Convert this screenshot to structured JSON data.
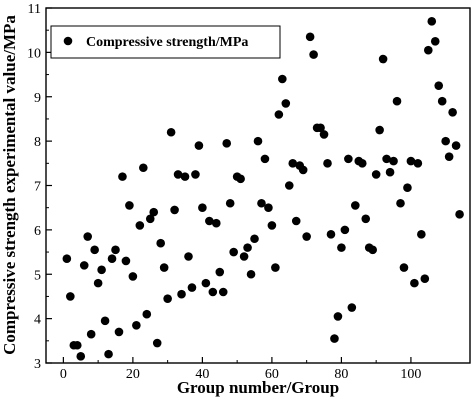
{
  "chart_data": {
    "type": "scatter",
    "xlabel": "Group number/Group",
    "ylabel": "Compressive strength experimental value/MPa",
    "xlim": [
      -5,
      117
    ],
    "ylim": [
      3,
      11
    ],
    "xticks": [
      "0",
      "20",
      "40",
      "60",
      "80",
      "100"
    ],
    "yticks": [
      "3",
      "4",
      "5",
      "6",
      "7",
      "8",
      "9",
      "10",
      "11"
    ],
    "legend_position": "top-left",
    "grid": false,
    "series": [
      {
        "name": "Compressive strength/MPa",
        "color": "#000000",
        "points": [
          [
            1,
            5.35
          ],
          [
            2,
            4.5
          ],
          [
            3,
            3.4
          ],
          [
            4,
            3.4
          ],
          [
            5,
            3.15
          ],
          [
            6,
            5.2
          ],
          [
            7,
            5.85
          ],
          [
            8,
            3.65
          ],
          [
            9,
            5.55
          ],
          [
            10,
            4.8
          ],
          [
            11,
            5.1
          ],
          [
            12,
            3.95
          ],
          [
            13,
            3.2
          ],
          [
            14,
            5.35
          ],
          [
            15,
            5.55
          ],
          [
            16,
            3.7
          ],
          [
            17,
            7.2
          ],
          [
            18,
            5.3
          ],
          [
            19,
            6.55
          ],
          [
            20,
            4.95
          ],
          [
            21,
            3.85
          ],
          [
            22,
            6.1
          ],
          [
            23,
            7.4
          ],
          [
            24,
            4.1
          ],
          [
            25,
            6.25
          ],
          [
            26,
            6.4
          ],
          [
            27,
            3.45
          ],
          [
            28,
            5.7
          ],
          [
            29,
            5.15
          ],
          [
            30,
            4.45
          ],
          [
            31,
            8.2
          ],
          [
            32,
            6.45
          ],
          [
            33,
            7.25
          ],
          [
            34,
            4.55
          ],
          [
            35,
            7.2
          ],
          [
            36,
            5.4
          ],
          [
            37,
            4.7
          ],
          [
            38,
            7.25
          ],
          [
            39,
            7.9
          ],
          [
            40,
            6.5
          ],
          [
            41,
            4.8
          ],
          [
            42,
            6.2
          ],
          [
            43,
            4.6
          ],
          [
            44,
            6.15
          ],
          [
            45,
            5.05
          ],
          [
            46,
            4.6
          ],
          [
            47,
            7.95
          ],
          [
            48,
            6.6
          ],
          [
            49,
            5.5
          ],
          [
            50,
            7.2
          ],
          [
            51,
            7.15
          ],
          [
            52,
            5.4
          ],
          [
            53,
            5.6
          ],
          [
            54,
            5.0
          ],
          [
            55,
            5.8
          ],
          [
            56,
            8.0
          ],
          [
            57,
            6.6
          ],
          [
            58,
            7.6
          ],
          [
            59,
            6.5
          ],
          [
            60,
            6.1
          ],
          [
            61,
            5.15
          ],
          [
            62,
            8.6
          ],
          [
            63,
            9.4
          ],
          [
            64,
            8.85
          ],
          [
            65,
            7.0
          ],
          [
            66,
            7.5
          ],
          [
            67,
            6.2
          ],
          [
            68,
            7.45
          ],
          [
            69,
            7.35
          ],
          [
            70,
            5.85
          ],
          [
            71,
            10.35
          ],
          [
            72,
            9.95
          ],
          [
            73,
            8.3
          ],
          [
            74,
            8.3
          ],
          [
            75,
            8.15
          ],
          [
            76,
            7.5
          ],
          [
            77,
            5.9
          ],
          [
            78,
            3.55
          ],
          [
            79,
            4.05
          ],
          [
            80,
            5.6
          ],
          [
            81,
            6.0
          ],
          [
            82,
            7.6
          ],
          [
            83,
            4.25
          ],
          [
            84,
            6.55
          ],
          [
            85,
            7.55
          ],
          [
            86,
            7.5
          ],
          [
            87,
            6.25
          ],
          [
            88,
            5.6
          ],
          [
            89,
            5.55
          ],
          [
            90,
            7.25
          ],
          [
            91,
            8.25
          ],
          [
            92,
            9.85
          ],
          [
            93,
            7.6
          ],
          [
            94,
            7.3
          ],
          [
            95,
            7.55
          ],
          [
            96,
            8.9
          ],
          [
            97,
            6.6
          ],
          [
            98,
            5.15
          ],
          [
            99,
            6.95
          ],
          [
            100,
            7.55
          ],
          [
            101,
            4.8
          ],
          [
            102,
            7.5
          ],
          [
            103,
            5.9
          ],
          [
            104,
            4.9
          ],
          [
            105,
            10.05
          ],
          [
            106,
            10.7
          ],
          [
            107,
            10.25
          ],
          [
            108,
            9.25
          ],
          [
            109,
            8.9
          ],
          [
            110,
            8.0
          ],
          [
            111,
            7.65
          ],
          [
            112,
            8.65
          ],
          [
            113,
            7.9
          ],
          [
            114,
            6.35
          ]
        ]
      }
    ]
  }
}
